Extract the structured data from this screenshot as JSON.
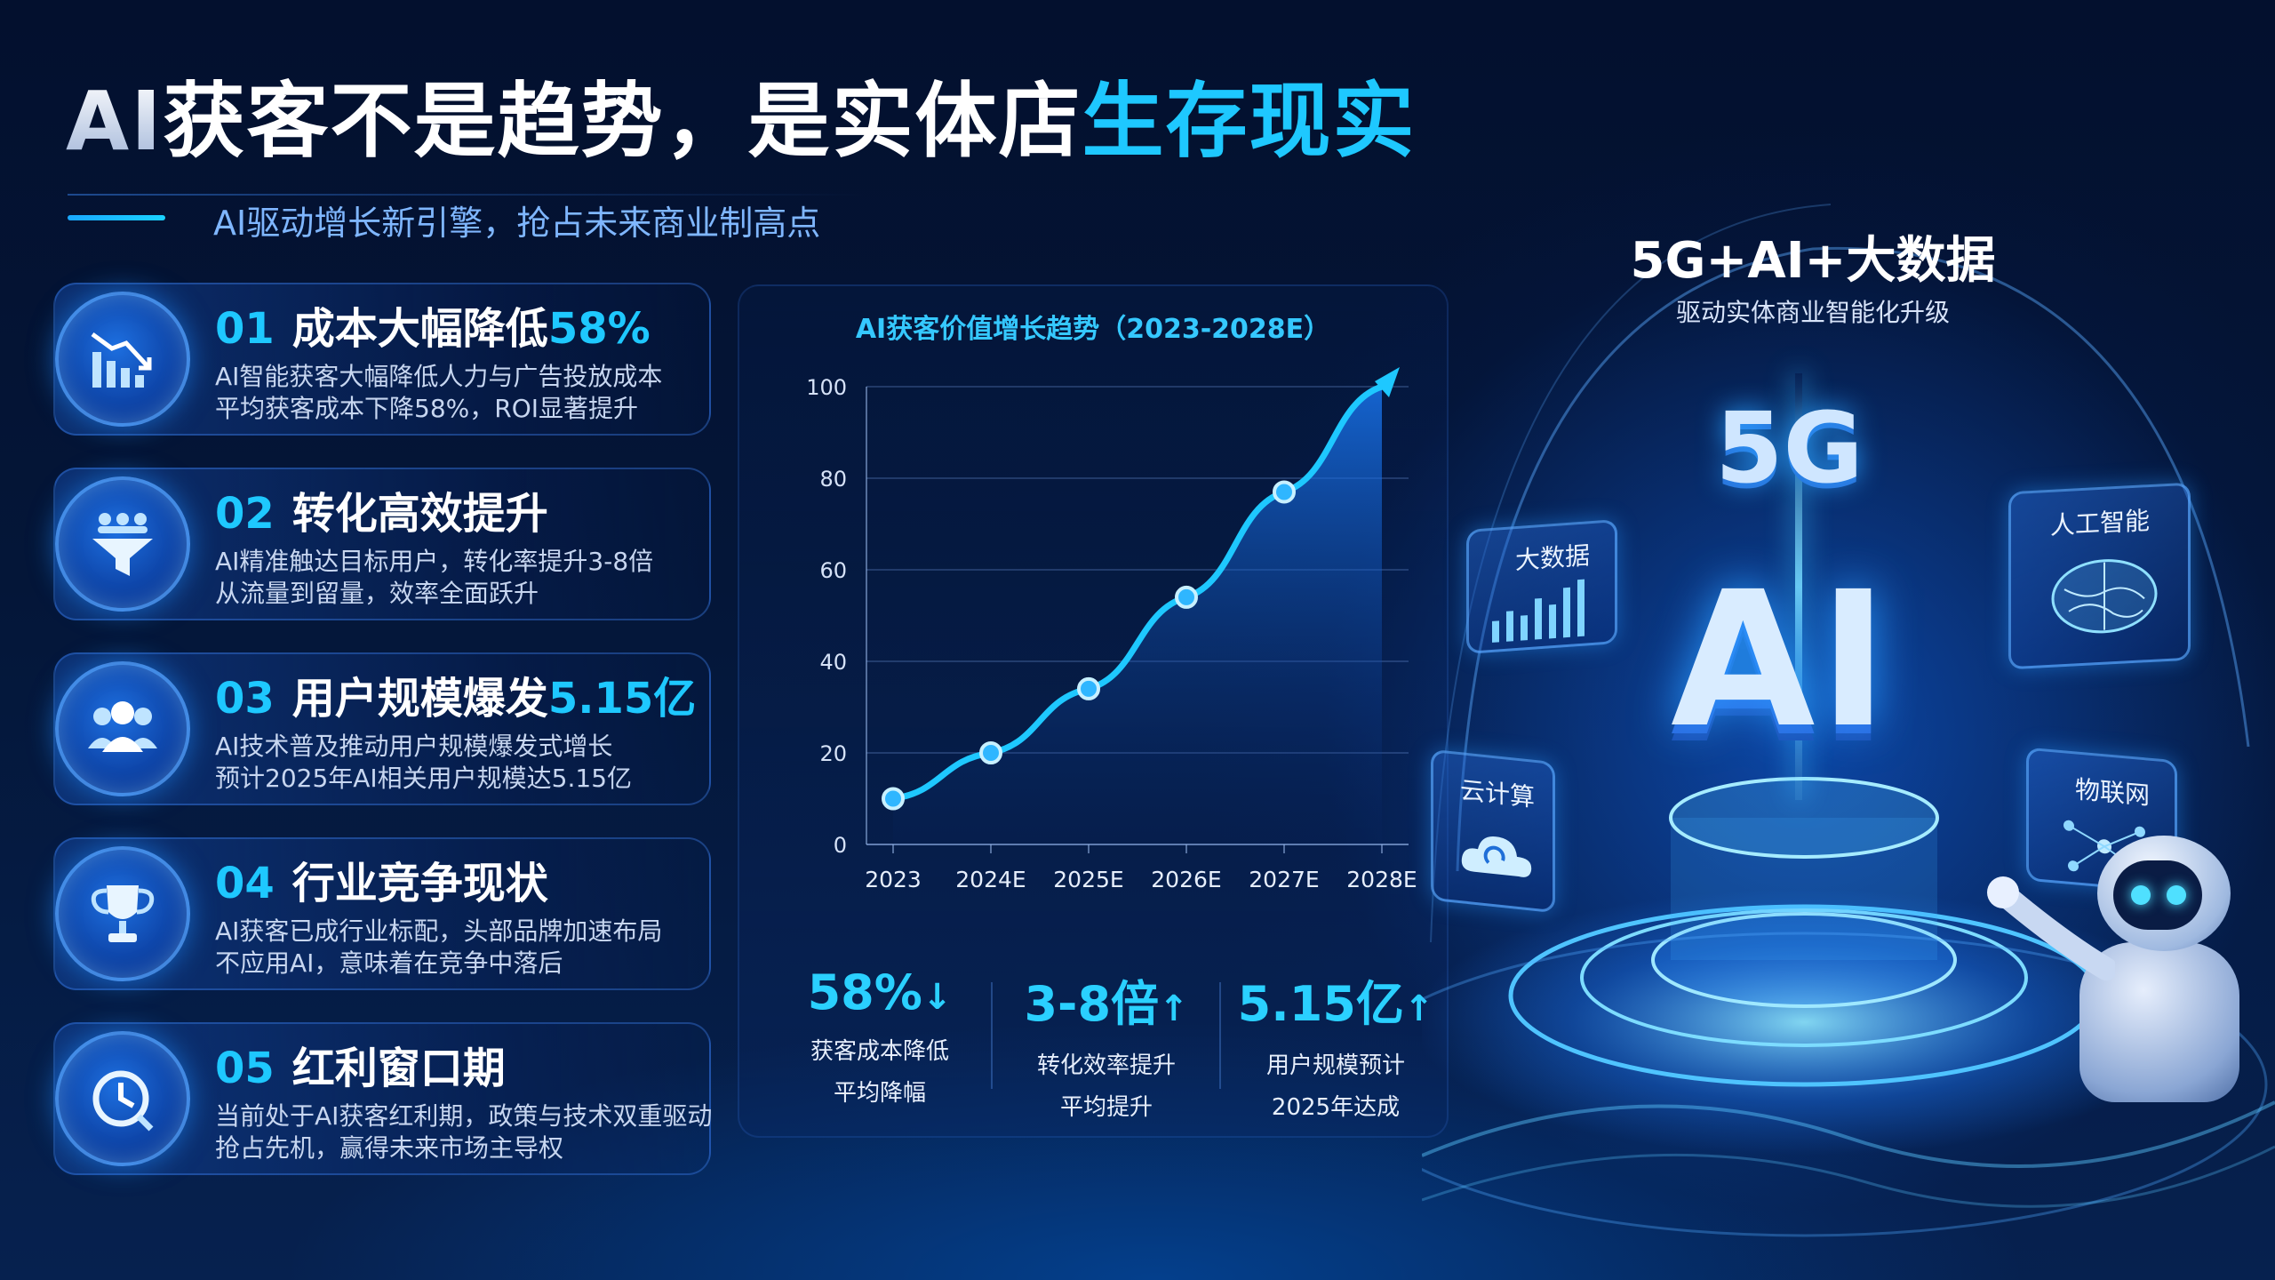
{
  "header": {
    "title_prefix": "AI",
    "title_main": "获客不是趋势，是实体店",
    "title_highlight": "生存现实",
    "subtitle": "AI驱动增长新引擎，抢占未来商业制高点"
  },
  "cards": [
    {
      "num": "01",
      "title": "成本大幅降低",
      "highlight": "58%",
      "icon": "cost-down-chart-icon",
      "line1": "AI智能获客大幅降低人力与广告投放成本",
      "line2": "平均获客成本下降58%，ROI显著提升"
    },
    {
      "num": "02",
      "title": "转化高效提升",
      "highlight": "",
      "icon": "funnel-users-icon",
      "line1": "AI精准触达目标用户，转化率提升3-8倍",
      "line2": "从流量到留量，效率全面跃升"
    },
    {
      "num": "03",
      "title": "用户规模爆发",
      "highlight": "5.15亿",
      "icon": "users-group-icon",
      "line1": "AI技术普及推动用户规模爆发式增长",
      "line2": "预计2025年AI相关用户规模达5.15亿"
    },
    {
      "num": "04",
      "title": "行业竞争现状",
      "highlight": "",
      "icon": "trophy-icon",
      "line1": "AI获客已成行业标配，头部品牌加速布局",
      "line2": "不应用AI，意味着在竞争中落后"
    },
    {
      "num": "05",
      "title": "红利窗口期",
      "highlight": "",
      "icon": "clock-chart-icon",
      "line1": "当前处于AI获客红利期，政策与技术双重驱动",
      "line2": "抢占先机，赢得未来市场主导权"
    }
  ],
  "chart_data": {
    "type": "line",
    "title": "AI获客价值增长趋势（2023-2028E）",
    "categories": [
      "2023",
      "2024E",
      "2025E",
      "2026E",
      "2027E",
      "2028E"
    ],
    "series": [
      {
        "values": [
          10,
          20,
          34,
          54,
          77,
          100
        ]
      }
    ],
    "ylim": [
      0,
      100
    ],
    "yticks": [
      "0",
      "20",
      "40",
      "60",
      "80",
      "100"
    ],
    "grid": true,
    "line_color": "#1ec8ff",
    "area_fill": true,
    "end_arrow": true
  },
  "stats": [
    {
      "value": "58%",
      "arrow": "↓",
      "label1": "获客成本降低",
      "label2": "平均降幅"
    },
    {
      "value": "3-8倍",
      "arrow": "↑",
      "label1": "转化效率提升",
      "label2": "平均提升"
    },
    {
      "value": "5.15亿",
      "arrow": "↑",
      "label1": "用户规模预计",
      "label2": "2025年达成"
    }
  ],
  "scene": {
    "heading": "5G+AI+大数据",
    "subheading": "驱动实体商业智能化升级",
    "glyph_5g": "5G",
    "glyph_ai": "AI",
    "panels": {
      "bigdata": "大数据",
      "ai": "人工智能",
      "cloud": "云计算",
      "iot": "物联网"
    }
  },
  "colors": {
    "accent": "#1ec8ff",
    "background": "#041638",
    "card_border": "#4a8cff"
  }
}
